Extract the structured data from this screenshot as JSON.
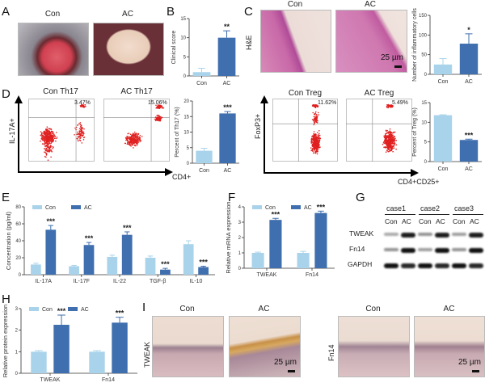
{
  "colors": {
    "con": "#a9d3ea",
    "ac": "#3f6fae",
    "dots": "#e02020"
  },
  "panels": {
    "A": "A",
    "B": "B",
    "C": "C",
    "D": "D",
    "E": "E",
    "F": "F",
    "G": "G",
    "H": "H",
    "I": "I"
  },
  "a": {
    "con": "Con",
    "ac": "AC"
  },
  "c": {
    "con": "Con",
    "ac": "AC",
    "stain": "H&E",
    "scale": "25 µm"
  },
  "d": {
    "th17_con": "Con Th17",
    "th17_ac": "AC Th17",
    "th17_con_pct": "3.47%",
    "th17_ac_pct": "15.06%",
    "y_axis": "IL-17A+",
    "x_axis": "CD4+",
    "treg_con": "Con Treg",
    "treg_ac": "AC Treg",
    "treg_con_pct": "11.62%",
    "treg_ac_pct": "5.49%",
    "treg_y_axis": "FoxP3+",
    "treg_x_axis": "CD4+CD25+"
  },
  "g": {
    "cases": [
      "case1",
      "case2",
      "case3"
    ],
    "lanes": [
      "Con",
      "AC",
      "Con",
      "AC",
      "Con",
      "AC"
    ],
    "rows": [
      "TWEAK",
      "Fn14",
      "GAPDH"
    ]
  },
  "i": {
    "con": "Con",
    "ac": "AC",
    "row1": "TWEAK",
    "row2": "Fn14",
    "scale": "25 µm"
  },
  "chart_data": [
    {
      "id": "B",
      "type": "bar",
      "categories": [
        "Con",
        "AC"
      ],
      "values": [
        1,
        10
      ],
      "errors": [
        1,
        1.8
      ],
      "ylabel": "Clinical score",
      "ylim": [
        0,
        15
      ],
      "yticks": [
        0,
        5,
        10,
        15
      ],
      "significance": [
        "",
        "**"
      ]
    },
    {
      "id": "C",
      "type": "bar",
      "categories": [
        "Con",
        "AC"
      ],
      "values": [
        25,
        78
      ],
      "errors": [
        15,
        25
      ],
      "ylabel": "Number of inflammatory cells",
      "ylim": [
        0,
        150
      ],
      "yticks": [
        0,
        50,
        100,
        150
      ],
      "significance": [
        "",
        "*"
      ]
    },
    {
      "id": "D1",
      "type": "bar",
      "categories": [
        "Con",
        "AC"
      ],
      "values": [
        4,
        16
      ],
      "errors": [
        0.8,
        0.6
      ],
      "ylabel": "Percent of Th17 (%)",
      "ylim": [
        0,
        20
      ],
      "yticks": [
        0,
        5,
        10,
        15,
        20
      ],
      "significance": [
        "",
        "***"
      ]
    },
    {
      "id": "D2",
      "type": "bar",
      "categories": [
        "Con",
        "AC"
      ],
      "values": [
        11.8,
        5.5
      ],
      "errors": [
        0.1,
        0.2
      ],
      "ylabel": "Percent of Treg (%)",
      "ylim": [
        0,
        15
      ],
      "yticks": [
        0,
        5,
        10,
        15
      ],
      "significance": [
        "",
        "***"
      ]
    },
    {
      "id": "E",
      "type": "bar",
      "categories": [
        "IL-17A",
        "IL-17F",
        "IL-22",
        "TGF-β",
        "IL-10"
      ],
      "ylabel": "Concentration (pg/ml)",
      "ylim": [
        0,
        80
      ],
      "yticks": [
        0,
        20,
        40,
        60,
        80
      ],
      "series": [
        {
          "name": "Con",
          "values": [
            12,
            10,
            21,
            20,
            36
          ],
          "errors": [
            1.5,
            1,
            2,
            2,
            4
          ]
        },
        {
          "name": "AC",
          "values": [
            53,
            35,
            47,
            6,
            9
          ],
          "errors": [
            5,
            3,
            3.5,
            1.5,
            1
          ]
        }
      ],
      "significance": [
        "***",
        "***",
        "***",
        "***",
        "***"
      ]
    },
    {
      "id": "F",
      "type": "bar",
      "categories": [
        "TWEAK",
        "Fn14"
      ],
      "ylabel": "Relative mRNA expression",
      "ylim": [
        0,
        4
      ],
      "yticks": [
        0,
        1,
        2,
        3,
        4
      ],
      "series": [
        {
          "name": "Con",
          "values": [
            1,
            1
          ],
          "errors": [
            0.05,
            0.1
          ]
        },
        {
          "name": "AC",
          "values": [
            3.15,
            3.6
          ],
          "errors": [
            0.1,
            0.12
          ]
        }
      ],
      "significance": [
        "***",
        "***"
      ]
    },
    {
      "id": "H",
      "type": "bar",
      "categories": [
        "TWEAK",
        "Fn14"
      ],
      "ylabel": "Relative protein expression",
      "ylim": [
        0,
        3
      ],
      "yticks": [
        0,
        1,
        2,
        3
      ],
      "series": [
        {
          "name": "Con",
          "values": [
            1,
            1
          ],
          "errors": [
            0.05,
            0.05
          ]
        },
        {
          "name": "AC",
          "values": [
            2.25,
            2.35
          ],
          "errors": [
            0.45,
            0.25
          ]
        }
      ],
      "significance": [
        "***",
        "***"
      ]
    }
  ]
}
